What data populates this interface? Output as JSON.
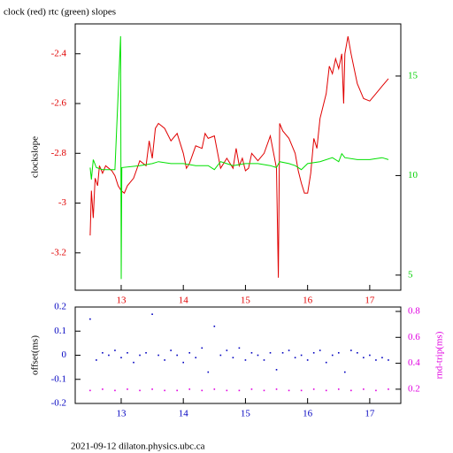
{
  "chart_data": [
    {
      "type": "line",
      "title": "clock (red) rtc (green) slopes",
      "ylabel": "clockslope",
      "xlim": [
        12.26,
        17.5
      ],
      "xticks": [
        13,
        14,
        15,
        16,
        17
      ],
      "ylim": [
        -3.35,
        -2.28
      ],
      "yticks": [
        -3.2,
        -3,
        -2.8,
        -2.6,
        -2.4
      ],
      "y2lim": [
        4.24,
        17.62
      ],
      "y2ticks": [
        5,
        10,
        15
      ],
      "axis_colors": {
        "x": "#e00000",
        "y": "#e00000",
        "y2": "#00d000"
      },
      "series": [
        {
          "color": "#e00000",
          "axis": "y",
          "x": [
            12.5,
            12.52,
            12.55,
            12.58,
            12.62,
            12.65,
            12.7,
            12.75,
            12.85,
            12.9,
            12.95,
            13.0,
            13.05,
            13.1,
            13.2,
            13.3,
            13.4,
            13.45,
            13.5,
            13.55,
            13.6,
            13.7,
            13.8,
            13.9,
            14.0,
            14.05,
            14.1,
            14.2,
            14.3,
            14.35,
            14.4,
            14.5,
            14.6,
            14.7,
            14.8,
            14.85,
            14.9,
            14.95,
            15.0,
            15.05,
            15.1,
            15.2,
            15.3,
            15.4,
            15.5,
            15.53,
            15.55,
            15.6,
            15.7,
            15.75,
            15.8,
            15.85,
            15.9,
            15.95,
            16.0,
            16.05,
            16.1,
            16.15,
            16.2,
            16.3,
            16.35,
            16.4,
            16.45,
            16.5,
            16.55,
            16.58,
            16.6,
            16.65,
            16.7,
            16.8,
            16.9,
            17.0,
            17.1,
            17.2,
            17.3
          ],
          "values": [
            -3.13,
            -2.95,
            -3.06,
            -2.9,
            -2.93,
            -2.85,
            -2.88,
            -2.85,
            -2.87,
            -2.89,
            -2.93,
            -2.95,
            -2.96,
            -2.93,
            -2.9,
            -2.83,
            -2.85,
            -2.75,
            -2.82,
            -2.7,
            -2.68,
            -2.7,
            -2.75,
            -2.72,
            -2.8,
            -2.86,
            -2.84,
            -2.77,
            -2.78,
            -2.72,
            -2.74,
            -2.73,
            -2.86,
            -2.82,
            -2.86,
            -2.78,
            -2.85,
            -2.82,
            -2.87,
            -2.86,
            -2.8,
            -2.83,
            -2.8,
            -2.73,
            -2.86,
            -3.3,
            -2.68,
            -2.71,
            -2.74,
            -2.77,
            -2.8,
            -2.87,
            -2.92,
            -2.96,
            -2.96,
            -2.88,
            -2.74,
            -2.78,
            -2.66,
            -2.56,
            -2.45,
            -2.48,
            -2.42,
            -2.46,
            -2.4,
            -2.6,
            -2.4,
            -2.33,
            -2.4,
            -2.52,
            -2.58,
            -2.59,
            -2.56,
            -2.53,
            -2.5
          ]
        },
        {
          "color": "#00e000",
          "axis": "y2",
          "x": [
            12.5,
            12.52,
            12.55,
            12.6,
            12.7,
            12.9,
            12.99,
            13.0,
            13.01,
            13.3,
            13.5,
            13.6,
            13.8,
            14.0,
            14.2,
            14.4,
            14.5,
            14.6,
            14.8,
            15.0,
            15.2,
            15.4,
            15.5,
            15.55,
            15.7,
            15.8,
            15.9,
            16.0,
            16.2,
            16.4,
            16.5,
            16.55,
            16.6,
            16.8,
            17.0,
            17.2,
            17.3
          ],
          "values": [
            10.4,
            9.8,
            10.8,
            10.4,
            10.3,
            10.3,
            17.0,
            4.8,
            10.4,
            10.5,
            10.6,
            10.7,
            10.6,
            10.6,
            10.5,
            10.5,
            10.3,
            10.7,
            10.5,
            10.6,
            10.6,
            10.5,
            10.4,
            10.7,
            10.6,
            10.5,
            10.3,
            10.6,
            10.7,
            10.9,
            10.7,
            11.1,
            10.9,
            10.8,
            10.8,
            10.9,
            10.8
          ]
        }
      ]
    },
    {
      "type": "scatter",
      "ylabel": "offset(ms)",
      "y2label": "rnd-trip(ms)",
      "xlim": [
        12.26,
        17.5
      ],
      "xticks": [
        13,
        14,
        15,
        16,
        17
      ],
      "ylim": [
        -0.2,
        0.2
      ],
      "yticks": [
        -0.2,
        -0.1,
        0,
        0.1,
        0.2
      ],
      "y2lim": [
        0.09,
        0.834
      ],
      "y2ticks": [
        0.2,
        0.4,
        0.6,
        0.8
      ],
      "axis_colors": {
        "x": "#0000c0",
        "y": "#0000c0",
        "y2": "#e000e0"
      },
      "series": [
        {
          "color": "#0000c0",
          "axis": "y",
          "x": [
            12.5,
            12.6,
            12.7,
            12.8,
            12.9,
            13.0,
            13.1,
            13.2,
            13.3,
            13.4,
            13.5,
            13.6,
            13.7,
            13.8,
            13.9,
            14.0,
            14.1,
            14.2,
            14.3,
            14.4,
            14.5,
            14.6,
            14.7,
            14.8,
            14.9,
            15.0,
            15.1,
            15.2,
            15.3,
            15.4,
            15.5,
            15.6,
            15.7,
            15.8,
            15.9,
            16.0,
            16.1,
            16.2,
            16.3,
            16.4,
            16.5,
            16.6,
            16.7,
            16.8,
            16.9,
            17.0,
            17.1,
            17.2,
            17.3
          ],
          "values": [
            0.15,
            -0.02,
            0.01,
            0.0,
            0.02,
            -0.01,
            0.01,
            -0.03,
            0.0,
            0.01,
            0.17,
            0.0,
            -0.02,
            0.02,
            0.0,
            -0.03,
            0.01,
            -0.01,
            0.03,
            -0.07,
            0.12,
            0.0,
            0.02,
            -0.01,
            0.03,
            -0.02,
            0.01,
            0.0,
            -0.02,
            0.01,
            -0.06,
            0.01,
            0.02,
            -0.01,
            0.0,
            -0.02,
            0.01,
            0.02,
            -0.03,
            0.0,
            0.01,
            -0.07,
            0.02,
            0.01,
            -0.01,
            0.0,
            -0.02,
            -0.01,
            -0.02
          ]
        },
        {
          "color": "#e000e0",
          "axis": "y2",
          "x": [
            12.5,
            12.7,
            12.9,
            13.1,
            13.3,
            13.5,
            13.7,
            13.9,
            14.1,
            14.3,
            14.5,
            14.7,
            14.9,
            15.1,
            15.3,
            15.5,
            15.7,
            15.9,
            16.1,
            16.3,
            16.5,
            16.7,
            16.9,
            17.1,
            17.3
          ],
          "values": [
            0.19,
            0.2,
            0.19,
            0.2,
            0.19,
            0.2,
            0.19,
            0.19,
            0.2,
            0.19,
            0.2,
            0.19,
            0.19,
            0.2,
            0.19,
            0.2,
            0.19,
            0.19,
            0.2,
            0.19,
            0.2,
            0.19,
            0.2,
            0.19,
            0.2
          ]
        }
      ]
    }
  ],
  "footer": "2021-09-12 dilaton.physics.ubc.ca"
}
